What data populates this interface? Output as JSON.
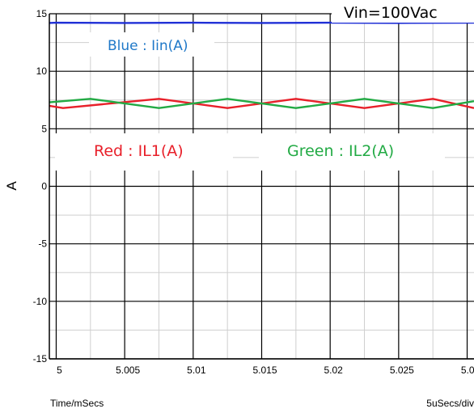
{
  "chart_data": {
    "type": "line",
    "title": "",
    "xlabel": "Time/mSecs",
    "ylabel": "A",
    "x_scale_note": "5uSecs/div",
    "xlim": [
      4.9995,
      5.0305
    ],
    "ylim": [
      -15,
      15
    ],
    "x_ticks": [
      5,
      5.005,
      5.01,
      5.015,
      5.02,
      5.025,
      5.03
    ],
    "x_tick_labels": [
      "5",
      "5.005",
      "5.01",
      "5.015",
      "5.02",
      "5.025",
      "5.03"
    ],
    "y_ticks": [
      15,
      10,
      5,
      0,
      -5,
      -10,
      -15
    ],
    "y_tick_labels": [
      "15",
      "10",
      "5",
      "0",
      "-5",
      "-10",
      "-15"
    ],
    "grid": true,
    "colors": {
      "blue": "#1f2fd6",
      "red": "#e8202a",
      "green": "#22aa44"
    },
    "series": [
      {
        "key": "blue",
        "x": [
          4.9995,
          5.0,
          5.005,
          5.01,
          5.015,
          5.02,
          5.025,
          5.0305
        ],
        "y": [
          14.2,
          14.22,
          14.2,
          14.22,
          14.2,
          14.22,
          14.2,
          14.22
        ]
      },
      {
        "key": "red",
        "x": [
          4.9995,
          5.0005,
          5.0075,
          5.0125,
          5.0175,
          5.0225,
          5.0275,
          5.0305
        ],
        "y": [
          7.0,
          6.8,
          7.6,
          6.8,
          7.6,
          6.8,
          7.6,
          6.8
        ]
      },
      {
        "key": "green",
        "x": [
          4.9995,
          5.0025,
          5.0075,
          5.0125,
          5.0175,
          5.0225,
          5.0275,
          5.0305
        ],
        "y": [
          7.3,
          7.6,
          6.8,
          7.6,
          6.8,
          7.6,
          6.8,
          7.4
        ]
      }
    ],
    "annotations": {
      "vin": "Vin=100Vac",
      "blue_label": "Blue : Iin(A)",
      "red_label": "Red : IL1(A)",
      "green_label": "Green : IL2(A)"
    }
  }
}
